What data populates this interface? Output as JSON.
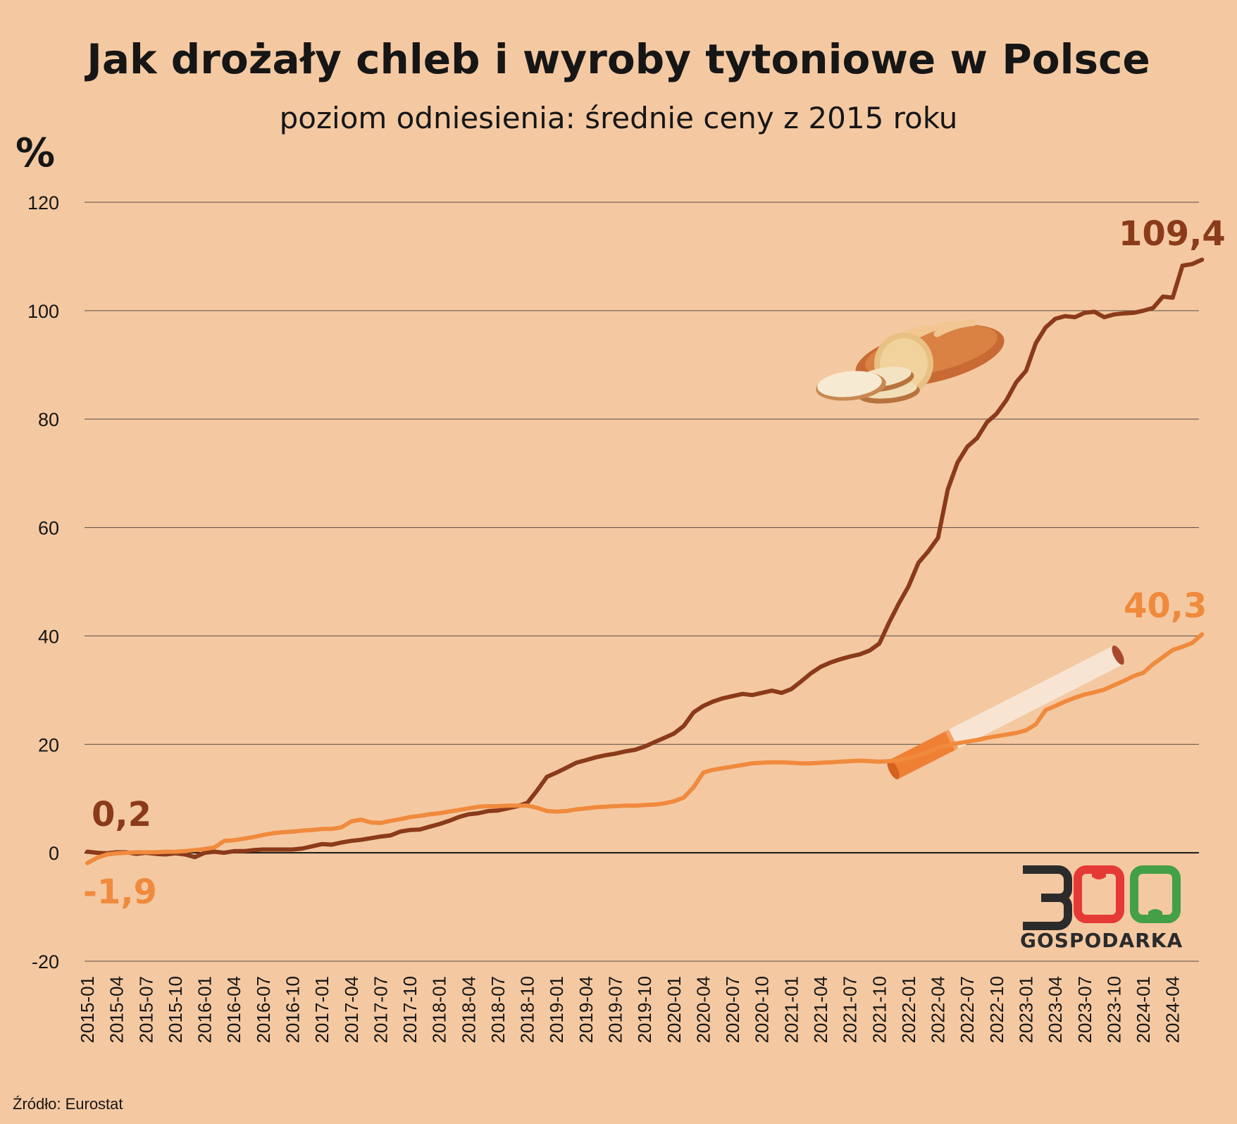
{
  "header": {
    "title": "Jak drożały chleb i wyroby tytoniowe w Polsce",
    "subtitle": "poziom odniesienia: średnie ceny z 2015 roku",
    "unit": "%"
  },
  "source": "Źródło: Eurostat",
  "logo": {
    "number": "300",
    "name": "GOSPODARKA"
  },
  "colors": {
    "background": "#f4c9a2",
    "bread": "#8b3a1a",
    "tobacco": "#f08a3c",
    "logo_red": "#e53935",
    "logo_green": "#43a047",
    "logo_dark": "#2b2b2b"
  },
  "icons": [
    "bread-icon",
    "cigarette-icon"
  ],
  "chart_data": {
    "type": "line",
    "ylim": [
      -20,
      120
    ],
    "yticks": [
      -20,
      0,
      20,
      40,
      60,
      80,
      100,
      120
    ],
    "grid": true,
    "x_tick_labels": [
      "2015-01",
      "2015-04",
      "2015-07",
      "2015-10",
      "2016-01",
      "2016-04",
      "2016-07",
      "2016-10",
      "2017-01",
      "2017-04",
      "2017-07",
      "2017-10",
      "2018-01",
      "2018-04",
      "2018-07",
      "2018-10",
      "2019-01",
      "2019-04",
      "2019-07",
      "2019-10",
      "2020-01",
      "2020-04",
      "2020-07",
      "2020-10",
      "2021-01",
      "2021-04",
      "2021-07",
      "2021-10",
      "2022-01",
      "2022-04",
      "2022-07",
      "2022-10",
      "2023-01",
      "2023-04",
      "2023-07",
      "2023-10",
      "2024-01",
      "2024-04"
    ],
    "x_start": "2015-01",
    "x_end": "2024-06",
    "series": [
      {
        "key": "bread",
        "color": "#8b3a1a",
        "end_label": "109,4",
        "start_label": "0,2",
        "values": [
          0.2,
          0.0,
          -0.1,
          0.1,
          0.1,
          -0.2,
          0.0,
          -0.2,
          -0.3,
          -0.1,
          -0.3,
          -0.8,
          0.0,
          0.2,
          0.0,
          0.3,
          0.3,
          0.5,
          0.6,
          0.6,
          0.6,
          0.6,
          0.8,
          1.2,
          1.6,
          1.5,
          1.9,
          2.2,
          2.4,
          2.7,
          3.0,
          3.2,
          3.9,
          4.2,
          4.3,
          4.8,
          5.3,
          5.9,
          6.6,
          7.1,
          7.3,
          7.7,
          7.8,
          8.2,
          8.6,
          9.2,
          11.5,
          14.0,
          14.8,
          15.7,
          16.6,
          17.1,
          17.6,
          18.0,
          18.3,
          18.7,
          19.0,
          19.6,
          20.4,
          21.2,
          22.0,
          23.4,
          25.9,
          27.1,
          27.9,
          28.5,
          28.9,
          29.3,
          29.1,
          29.5,
          29.9,
          29.5,
          30.2,
          31.6,
          33.1,
          34.3,
          35.1,
          35.7,
          36.2,
          36.6,
          37.3,
          38.6,
          42.5,
          46.0,
          49.2,
          53.5,
          55.6,
          58.1,
          67.0,
          72.0,
          74.9,
          76.5,
          79.4,
          81.0,
          83.5,
          86.8,
          88.9,
          94.0,
          96.9,
          98.5,
          99.0,
          98.8,
          99.6,
          99.8,
          98.8,
          99.3,
          99.5,
          99.6,
          100.0,
          100.5,
          102.6,
          102.4,
          108.3,
          108.6,
          109.4
        ]
      },
      {
        "key": "tobacco",
        "color": "#f08a3c",
        "end_label": "40,3",
        "start_label": "-1,9",
        "values": [
          -1.9,
          -0.9,
          -0.3,
          -0.1,
          0.0,
          0.1,
          0.1,
          0.1,
          0.2,
          0.2,
          0.3,
          0.5,
          0.7,
          1.0,
          2.2,
          2.3,
          2.6,
          2.9,
          3.3,
          3.6,
          3.8,
          3.9,
          4.1,
          4.2,
          4.4,
          4.4,
          4.7,
          5.8,
          6.1,
          5.6,
          5.5,
          5.9,
          6.2,
          6.6,
          6.8,
          7.1,
          7.3,
          7.6,
          7.9,
          8.2,
          8.5,
          8.6,
          8.6,
          8.7,
          8.7,
          8.7,
          8.3,
          7.7,
          7.6,
          7.7,
          8.0,
          8.2,
          8.4,
          8.5,
          8.6,
          8.7,
          8.7,
          8.8,
          8.9,
          9.1,
          9.5,
          10.2,
          12.1,
          14.8,
          15.3,
          15.6,
          15.9,
          16.2,
          16.5,
          16.6,
          16.7,
          16.7,
          16.6,
          16.5,
          16.5,
          16.6,
          16.7,
          16.8,
          16.9,
          17.0,
          16.9,
          16.8,
          16.9,
          17.1,
          17.5,
          18.0,
          18.6,
          19.4,
          19.8,
          20.2,
          20.5,
          20.8,
          21.2,
          21.5,
          21.8,
          22.1,
          22.6,
          23.7,
          26.3,
          27.1,
          27.9,
          28.6,
          29.2,
          29.6,
          30.1,
          30.9,
          31.7,
          32.6,
          33.2,
          34.8,
          36.1,
          37.4,
          38.0,
          38.7,
          40.3
        ]
      }
    ]
  }
}
